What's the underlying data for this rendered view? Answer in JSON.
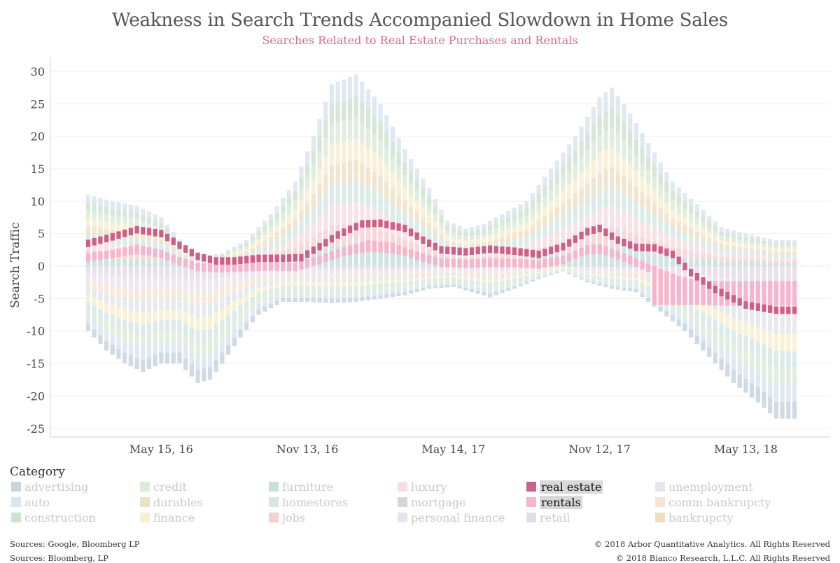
{
  "chart_data": {
    "type": "bar",
    "title": "Weakness in Search Trends Accompanied Slowdown in Home Sales",
    "subtitle": "Searches Related to Real Estate Purchases and Rentals",
    "ylabel": "Search Traffic",
    "xlabel": "",
    "ylim": [
      -26,
      31
    ],
    "yticks": [
      30,
      25,
      20,
      15,
      10,
      5,
      0,
      -5,
      -10,
      -15,
      -20,
      -25
    ],
    "xticks": [
      "May 15, 16",
      "Nov 13, 16",
      "May 14, 17",
      "Nov 12, 17",
      "May 13, 18"
    ],
    "xtick_positions": [
      12,
      36,
      60,
      84,
      108
    ],
    "n_weeks": 117,
    "envelope_keypoints": {
      "positive_top": [
        [
          0,
          11
        ],
        [
          4,
          10
        ],
        [
          8,
          9.3
        ],
        [
          12,
          7.5
        ],
        [
          16,
          3
        ],
        [
          19,
          1.5
        ],
        [
          22,
          2
        ],
        [
          26,
          4
        ],
        [
          30,
          8
        ],
        [
          34,
          13
        ],
        [
          37,
          20
        ],
        [
          40,
          28
        ],
        [
          44,
          29.5
        ],
        [
          48,
          25
        ],
        [
          52,
          18
        ],
        [
          56,
          12
        ],
        [
          59,
          7
        ],
        [
          62,
          5.8
        ],
        [
          65,
          6.5
        ],
        [
          68,
          8
        ],
        [
          72,
          10
        ],
        [
          76,
          15
        ],
        [
          80,
          20
        ],
        [
          84,
          26
        ],
        [
          86,
          27.5
        ],
        [
          88,
          25
        ],
        [
          92,
          19
        ],
        [
          96,
          13
        ],
        [
          100,
          9.5
        ],
        [
          104,
          6
        ],
        [
          108,
          5
        ],
        [
          113,
          4
        ]
      ],
      "negative_bottom": [
        [
          0,
          -10
        ],
        [
          3,
          -13
        ],
        [
          6,
          -15
        ],
        [
          9,
          -16.3
        ],
        [
          12,
          -15
        ],
        [
          15,
          -15
        ],
        [
          18,
          -18
        ],
        [
          20,
          -17.5
        ],
        [
          22,
          -15
        ],
        [
          25,
          -11
        ],
        [
          28,
          -7.5
        ],
        [
          32,
          -5.5
        ],
        [
          36,
          -5.5
        ],
        [
          40,
          -5.7
        ],
        [
          44,
          -5.5
        ],
        [
          48,
          -5
        ],
        [
          52,
          -4.5
        ],
        [
          56,
          -3.5
        ],
        [
          60,
          -3.2
        ],
        [
          63,
          -4
        ],
        [
          66,
          -4.8
        ],
        [
          70,
          -3.5
        ],
        [
          74,
          -2
        ],
        [
          78,
          -0.8
        ],
        [
          82,
          -2.5
        ],
        [
          86,
          -3.5
        ],
        [
          90,
          -4
        ],
        [
          94,
          -7
        ],
        [
          98,
          -10
        ],
        [
          102,
          -14
        ],
        [
          106,
          -18
        ],
        [
          110,
          -21
        ],
        [
          113,
          -23.5
        ]
      ]
    },
    "series": [
      {
        "name": "advertising",
        "color": "#c8d3de"
      },
      {
        "name": "auto",
        "color": "#dbe5ee"
      },
      {
        "name": "construction",
        "color": "#cfe2d2"
      },
      {
        "name": "credit",
        "color": "#dcebd9"
      },
      {
        "name": "durables",
        "color": "#ece1c8"
      },
      {
        "name": "finance",
        "color": "#f7efd1"
      },
      {
        "name": "furniture",
        "color": "#c8dedb"
      },
      {
        "name": "homestores",
        "color": "#d6e7e3"
      },
      {
        "name": "jobs",
        "color": "#f4d0d5"
      },
      {
        "name": "luxury",
        "color": "#f6dee0"
      },
      {
        "name": "mortgage",
        "color": "#d6d6d6"
      },
      {
        "name": "personal finance",
        "color": "#e3e6ea"
      },
      {
        "name": "real estate",
        "color": "#cc6088",
        "highlighted": true,
        "keypoints": [
          [
            0,
            3.5
          ],
          [
            4,
            4.5
          ],
          [
            8,
            5.6
          ],
          [
            12,
            5
          ],
          [
            15,
            3.2
          ],
          [
            18,
            1.5
          ],
          [
            21,
            0.8
          ],
          [
            24,
            0.8
          ],
          [
            28,
            1.2
          ],
          [
            32,
            1.2
          ],
          [
            35,
            1.3
          ],
          [
            38,
            3
          ],
          [
            41,
            4.8
          ],
          [
            45,
            6.5
          ],
          [
            48,
            6.6
          ],
          [
            52,
            5.8
          ],
          [
            55,
            4
          ],
          [
            58,
            2.5
          ],
          [
            62,
            2.2
          ],
          [
            66,
            2.6
          ],
          [
            70,
            2.3
          ],
          [
            74,
            1.8
          ],
          [
            78,
            3
          ],
          [
            82,
            5.3
          ],
          [
            84,
            5.8
          ],
          [
            87,
            4
          ],
          [
            90,
            2.9
          ],
          [
            93,
            2.8
          ],
          [
            96,
            1.8
          ],
          [
            99,
            -1
          ],
          [
            103,
            -3.6
          ],
          [
            108,
            -6
          ],
          [
            113,
            -6.8
          ]
        ]
      },
      {
        "name": "rentals",
        "color": "#f5b5cc",
        "highlighted": true,
        "keypoints": [
          [
            0,
            2
          ],
          [
            4,
            2.5
          ],
          [
            8,
            3.3
          ],
          [
            12,
            2.5
          ],
          [
            15,
            1.4
          ],
          [
            18,
            0.5
          ],
          [
            22,
            0.3
          ],
          [
            26,
            0.5
          ],
          [
            30,
            0.6
          ],
          [
            34,
            0.5
          ],
          [
            38,
            1.6
          ],
          [
            42,
            2.9
          ],
          [
            46,
            4
          ],
          [
            50,
            3.6
          ],
          [
            54,
            2.2
          ],
          [
            58,
            1.2
          ],
          [
            62,
            1
          ],
          [
            66,
            1.2
          ],
          [
            70,
            1.1
          ],
          [
            74,
            0.9
          ],
          [
            78,
            1.6
          ],
          [
            82,
            3.2
          ],
          [
            84,
            3.4
          ],
          [
            87,
            2.3
          ],
          [
            90,
            1.2
          ],
          [
            94,
            -0.4
          ],
          [
            97,
            -1.5
          ],
          [
            100,
            -2.2
          ],
          [
            104,
            -2.3
          ],
          [
            108,
            -2.3
          ],
          [
            113,
            -2.3
          ]
        ]
      },
      {
        "name": "retail",
        "color": "#e3dde6"
      },
      {
        "name": "unemployment",
        "color": "#ebe3ee"
      },
      {
        "name": "comm bankrupcty",
        "color": "#f5e5d8"
      },
      {
        "name": "bankrupcty",
        "color": "#f0dcc0"
      }
    ],
    "grid": true,
    "legend_position": "bottom"
  },
  "legend": {
    "title": "Category",
    "items": [
      {
        "label": "advertising",
        "color": "#c8d3de",
        "active": false
      },
      {
        "label": "auto",
        "color": "#dbe5ee",
        "active": false
      },
      {
        "label": "construction",
        "color": "#cfe2d2",
        "active": false
      },
      {
        "label": "credit",
        "color": "#dcebd9",
        "active": false
      },
      {
        "label": "durables",
        "color": "#ece1c8",
        "active": false
      },
      {
        "label": "finance",
        "color": "#f7efd1",
        "active": false
      },
      {
        "label": "furniture",
        "color": "#c8dedb",
        "active": false
      },
      {
        "label": "homestores",
        "color": "#d6e7e3",
        "active": false
      },
      {
        "label": "jobs",
        "color": "#f4d0d5",
        "active": false
      },
      {
        "label": "luxury",
        "color": "#f6dee0",
        "active": false
      },
      {
        "label": "mortgage",
        "color": "#d6d6d6",
        "active": false
      },
      {
        "label": "personal finance",
        "color": "#e3e6ea",
        "active": false
      },
      {
        "label": "real estate",
        "color": "#cc6088",
        "active": true
      },
      {
        "label": "rentals",
        "color": "#f5b5cc",
        "active": true
      },
      {
        "label": "retail",
        "color": "#e3dde6",
        "active": false
      },
      {
        "label": "unemployment",
        "color": "#ebe3ee",
        "active": false
      },
      {
        "label": "comm bankrupcty",
        "color": "#f5e5d8",
        "active": false
      },
      {
        "label": "bankrupcty",
        "color": "#f0dcc0",
        "active": false
      }
    ]
  },
  "footer": {
    "source1": "Sources: Google, Bloomberg LP",
    "source2": "Sources: Bloomberg, LP",
    "copyright1": "© 2018 Arbor Quantitative Analytics. All Rights Reserved",
    "copyright2": "© 2018 Bianco Research, L.L.C. All Rights Reserved"
  }
}
